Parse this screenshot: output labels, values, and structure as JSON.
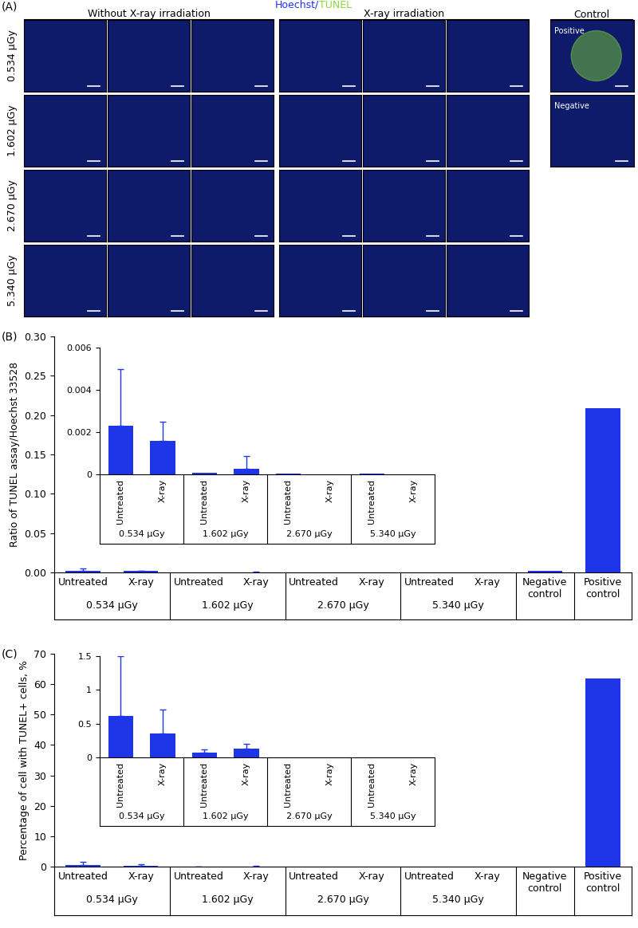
{
  "panel_a": {
    "label": "(A)",
    "stain": "Hoechst/TUNEL",
    "groups": [
      "Without X-ray irradiation",
      "X-ray irradiation",
      "Control"
    ],
    "rows": [
      "0.534 µGy",
      "1.602 µGy",
      "2.670 µGy",
      "5.340 µGy"
    ],
    "controls": [
      "Positive",
      "Negative"
    ]
  },
  "chart_data": [
    {
      "type": "bar",
      "panel_label": "(B)",
      "y_label": "Ratio of TUNEL assay/Hoechst 33528",
      "color": "#1f35e8",
      "categories": [
        "Untreated",
        "X-ray",
        "Untreated",
        "X-ray",
        "Untreated",
        "X-ray",
        "Untreated",
        "X-ray",
        "Negative control",
        "Positive control"
      ],
      "groups": [
        "0.534 µGy",
        "0.534 µGy",
        "1.602 µGy",
        "1.602 µGy",
        "2.670 µGy",
        "2.670 µGy",
        "5.340 µGy",
        "5.340 µGy",
        null,
        null
      ],
      "values": [
        0.0023,
        0.0016,
        8e-05,
        0.00025,
        3e-05,
        1e-05,
        2e-05,
        5e-06,
        0.002,
        0.209
      ],
      "errors": [
        0.0027,
        0.0009,
        null,
        0.0006,
        null,
        null,
        null,
        null,
        null,
        null
      ],
      "ylim": [
        0,
        0.3
      ],
      "yticks": [
        {
          "value": 0,
          "label": "0.00"
        },
        {
          "value": 0.05,
          "label": "0.05"
        },
        {
          "value": 0.1,
          "label": "0.10"
        },
        {
          "value": 0.15,
          "label": "0.15"
        },
        {
          "value": 0.2,
          "label": "0.20"
        },
        {
          "value": 0.25,
          "label": "0.25"
        },
        {
          "value": 0.3,
          "label": "0.30"
        }
      ],
      "inset": {
        "type": "bar",
        "color": "#1f35e8",
        "categories": [
          "Untreated",
          "X-ray",
          "Untreated",
          "X-ray",
          "Untreated",
          "X-ray",
          "Untreated",
          "X-ray"
        ],
        "groups": [
          "0.534 µGy",
          "0.534 µGy",
          "1.602 µGy",
          "1.602 µGy",
          "2.670 µGy",
          "2.670 µGy",
          "5.340 µGy",
          "5.340 µGy"
        ],
        "values": [
          0.0023,
          0.0016,
          8e-05,
          0.00025,
          3e-05,
          1e-05,
          2e-05,
          5e-06
        ],
        "errors": [
          0.0027,
          0.0009,
          null,
          0.0006,
          null,
          null,
          null,
          null
        ],
        "ylim": [
          0,
          0.006
        ],
        "yticks": [
          0,
          0.002,
          0.004,
          0.006
        ]
      }
    },
    {
      "type": "bar",
      "panel_label": "(C)",
      "y_label": "Percentage of cell with TUNEL+ cells, %",
      "color": "#1f35e8",
      "categories": [
        "Untreated",
        "X-ray",
        "Untreated",
        "X-ray",
        "Untreated",
        "X-ray",
        "Untreated",
        "X-ray",
        "Negative control",
        "Positive control"
      ],
      "groups": [
        "0.534 µGy",
        "0.534 µGy",
        "1.602 µGy",
        "1.602 µGy",
        "2.670 µGy",
        "2.670 µGy",
        "5.340 µGy",
        "5.340 µGy",
        null,
        null
      ],
      "values": [
        0.62,
        0.35,
        0.07,
        0.13,
        0,
        0,
        0,
        0,
        0,
        62
      ],
      "errors": [
        0.88,
        0.36,
        0.05,
        0.07,
        null,
        null,
        null,
        null,
        null,
        null
      ],
      "ylim": [
        0,
        70
      ],
      "yticks": [
        0,
        10,
        20,
        30,
        40,
        50,
        60,
        70
      ],
      "inset": {
        "type": "bar",
        "color": "#1f35e8",
        "categories": [
          "Untreated",
          "X-ray",
          "Untreated",
          "X-ray",
          "Untreated",
          "X-ray",
          "Untreated",
          "X-ray"
        ],
        "groups": [
          "0.534 µGy",
          "0.534 µGy",
          "1.602 µGy",
          "1.602 µGy",
          "2.670 µGy",
          "2.670 µGy",
          "5.340 µGy",
          "5.340 µGy"
        ],
        "values": [
          0.62,
          0.35,
          0.07,
          0.13,
          0,
          0,
          0,
          0
        ],
        "errors": [
          0.88,
          0.36,
          0.05,
          0.07,
          null,
          null,
          null,
          null
        ],
        "ylim": [
          0,
          1.5
        ],
        "yticks": [
          0,
          0.5,
          1,
          1.5
        ]
      }
    }
  ]
}
